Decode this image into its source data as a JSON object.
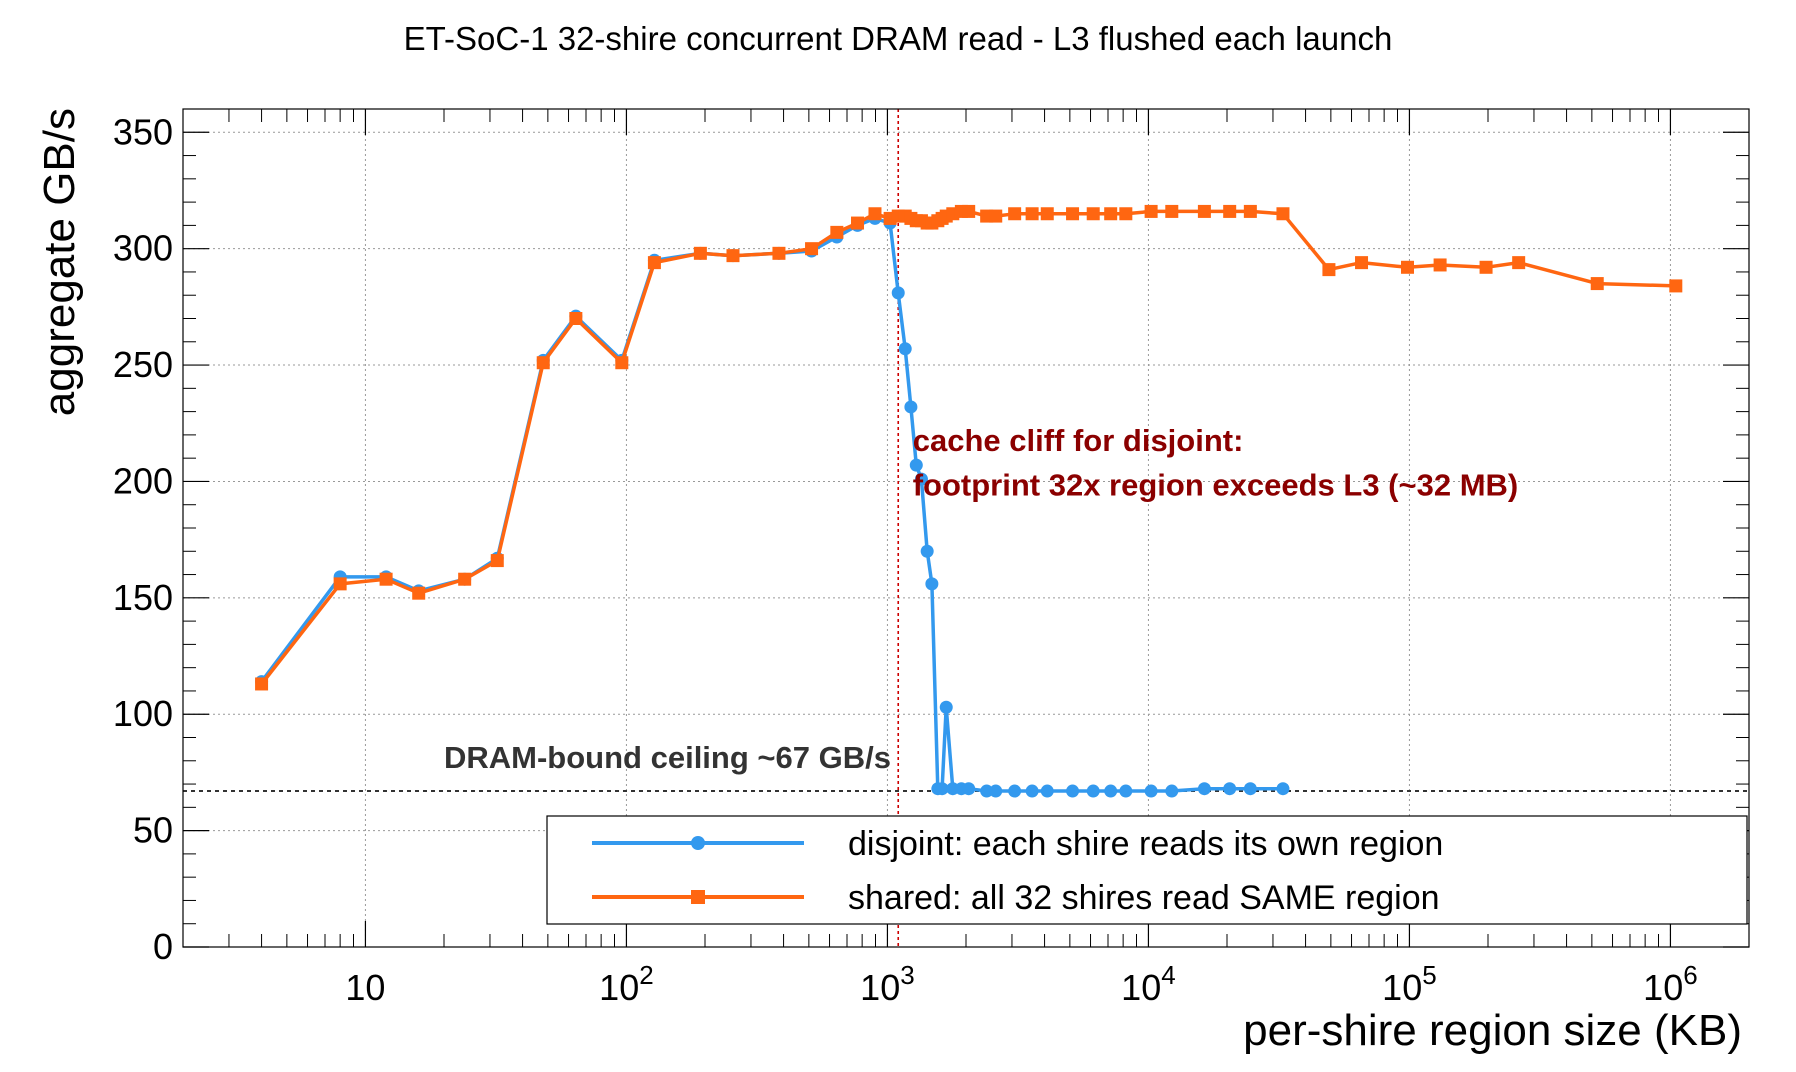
{
  "chart_data": {
    "type": "line",
    "title": "ET-SoC-1 32-shire concurrent DRAM read  -  L3 flushed each launch",
    "xlabel": "per-shire region size (KB)",
    "ylabel": "aggregate GB/s",
    "xscale": "log",
    "xlim": [
      2,
      2000000
    ],
    "ylim": [
      0,
      360
    ],
    "grid": true,
    "y_ticks": [
      0,
      50,
      100,
      150,
      200,
      250,
      300,
      350
    ],
    "x_tick_labels": [
      {
        "value": 10,
        "base": "10",
        "exp": ""
      },
      {
        "value": 100,
        "base": "10",
        "exp": "2"
      },
      {
        "value": 1000,
        "base": "10",
        "exp": "3"
      },
      {
        "value": 10000,
        "base": "10",
        "exp": "4"
      },
      {
        "value": 100000,
        "base": "10",
        "exp": "5"
      },
      {
        "value": 1000000,
        "base": "10",
        "exp": "6"
      }
    ],
    "legend_position": "bottom-right",
    "series": [
      {
        "name": "disjoint: each shire reads its own region",
        "color": "#3399ee",
        "marker": "circle",
        "points": [
          [
            4,
            114
          ],
          [
            8,
            159
          ],
          [
            12,
            159
          ],
          [
            16,
            153
          ],
          [
            24,
            158
          ],
          [
            32,
            167
          ],
          [
            48,
            252
          ],
          [
            64,
            271
          ],
          [
            96,
            252
          ],
          [
            128,
            295
          ],
          [
            192,
            298
          ],
          [
            256,
            297
          ],
          [
            384,
            298
          ],
          [
            512,
            299
          ],
          [
            640,
            305
          ],
          [
            768,
            310
          ],
          [
            896,
            313
          ],
          [
            1024,
            311
          ],
          [
            1100,
            281
          ],
          [
            1170,
            257
          ],
          [
            1230,
            232
          ],
          [
            1290,
            207
          ],
          [
            1350,
            201
          ],
          [
            1420,
            170
          ],
          [
            1480,
            156
          ],
          [
            1560,
            68
          ],
          [
            1620,
            68
          ],
          [
            1680,
            103
          ],
          [
            1780,
            68
          ],
          [
            1920,
            68
          ],
          [
            2048,
            68
          ],
          [
            2400,
            67
          ],
          [
            2600,
            67
          ],
          [
            3072,
            67
          ],
          [
            3584,
            67
          ],
          [
            4096,
            67
          ],
          [
            5120,
            67
          ],
          [
            6144,
            67
          ],
          [
            7168,
            67
          ],
          [
            8192,
            67
          ],
          [
            10240,
            67
          ],
          [
            12288,
            67
          ],
          [
            16384,
            68
          ],
          [
            20480,
            68
          ],
          [
            24576,
            68
          ],
          [
            32768,
            68
          ]
        ]
      },
      {
        "name": "shared: all 32 shires read SAME region",
        "color": "#ff6611",
        "marker": "square",
        "points": [
          [
            4,
            113
          ],
          [
            8,
            156
          ],
          [
            12,
            158
          ],
          [
            16,
            152
          ],
          [
            24,
            158
          ],
          [
            32,
            166
          ],
          [
            48,
            251
          ],
          [
            64,
            270
          ],
          [
            96,
            251
          ],
          [
            128,
            294
          ],
          [
            192,
            298
          ],
          [
            256,
            297
          ],
          [
            384,
            298
          ],
          [
            512,
            300
          ],
          [
            640,
            307
          ],
          [
            768,
            311
          ],
          [
            896,
            315
          ],
          [
            1024,
            313
          ],
          [
            1100,
            314
          ],
          [
            1170,
            314
          ],
          [
            1230,
            313
          ],
          [
            1290,
            312
          ],
          [
            1350,
            312
          ],
          [
            1420,
            311
          ],
          [
            1480,
            311
          ],
          [
            1560,
            312
          ],
          [
            1620,
            313
          ],
          [
            1680,
            314
          ],
          [
            1780,
            315
          ],
          [
            1920,
            316
          ],
          [
            2048,
            316
          ],
          [
            2400,
            314
          ],
          [
            2600,
            314
          ],
          [
            3072,
            315
          ],
          [
            3584,
            315
          ],
          [
            4096,
            315
          ],
          [
            5120,
            315
          ],
          [
            6144,
            315
          ],
          [
            7168,
            315
          ],
          [
            8192,
            315
          ],
          [
            10240,
            316
          ],
          [
            12288,
            316
          ],
          [
            16384,
            316
          ],
          [
            20480,
            316
          ],
          [
            24576,
            316
          ],
          [
            32768,
            315
          ],
          [
            49152,
            291
          ],
          [
            65536,
            294
          ],
          [
            98304,
            292
          ],
          [
            131072,
            293
          ],
          [
            196608,
            292
          ],
          [
            262144,
            294
          ],
          [
            524288,
            285
          ],
          [
            1048576,
            284
          ]
        ]
      }
    ],
    "reference_lines": [
      {
        "orientation": "horizontal",
        "value": 67,
        "color": "#333333",
        "style": "dotted"
      },
      {
        "orientation": "vertical",
        "value": 1100,
        "color": "#cc0000",
        "style": "dotted"
      }
    ],
    "annotations": [
      {
        "text": "DRAM-bound ceiling ~67 GB/s",
        "color": "#333333",
        "x": 20,
        "y": 77
      },
      {
        "text": "cache cliff for disjoint:",
        "color": "#8b0000",
        "x": 1250,
        "y": 213
      },
      {
        "text": "footprint 32x region exceeds L3 (~32 MB)",
        "color": "#8b0000",
        "x": 1250,
        "y": 194
      }
    ]
  }
}
